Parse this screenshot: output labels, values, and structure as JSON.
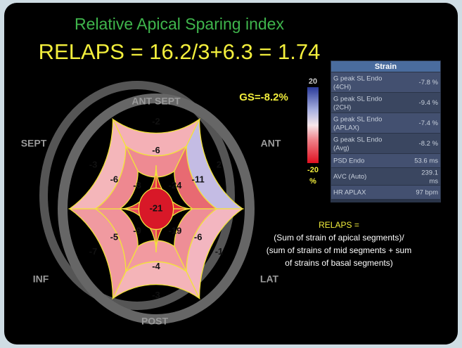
{
  "title": "Relative Apical Sparing index",
  "formula": "RELAPS = 16.2/3+6.3 = 1.74",
  "gs_label": "GS=-8.2%",
  "orientation": {
    "top": "ANT SEPT",
    "upper_left": "SEPT",
    "upper_right": "ANT",
    "lower_left": "INF",
    "lower_right": "LAT",
    "bottom": "POST"
  },
  "bullseye": {
    "basal": [
      "-2",
      "2",
      "-1",
      "-3",
      "-7",
      "-3"
    ],
    "mid": [
      "-6",
      "-11",
      "-6",
      "-4",
      "-5",
      "-6"
    ],
    "apical": [
      "-24",
      "-19",
      "-9",
      "-8"
    ],
    "apex": "-21"
  },
  "colorbar": {
    "max": "20",
    "min": "-20",
    "unit": "%"
  },
  "table": {
    "header": "Strain",
    "rows": [
      [
        "G peak SL Endo (4CH)",
        "-7.8 %"
      ],
      [
        "G peak SL Endo (2CH)",
        "-9.4 %"
      ],
      [
        "G peak SL Endo (APLAX)",
        "-7.4 %"
      ],
      [
        "G peak SL Endo (Avg)",
        "-8.2 %"
      ],
      [
        "PSD Endo",
        "53.6 ms"
      ],
      [
        "AVC (Auto)",
        "239.1 ms"
      ],
      [
        "HR APLAX",
        "97 bpm"
      ]
    ]
  },
  "definition": {
    "heading": "RELAPS =",
    "lines": [
      "(Sum of strain of apical segments)/",
      "(sum of strains of mid segments + sum",
      "of strains of basal segments)"
    ]
  }
}
